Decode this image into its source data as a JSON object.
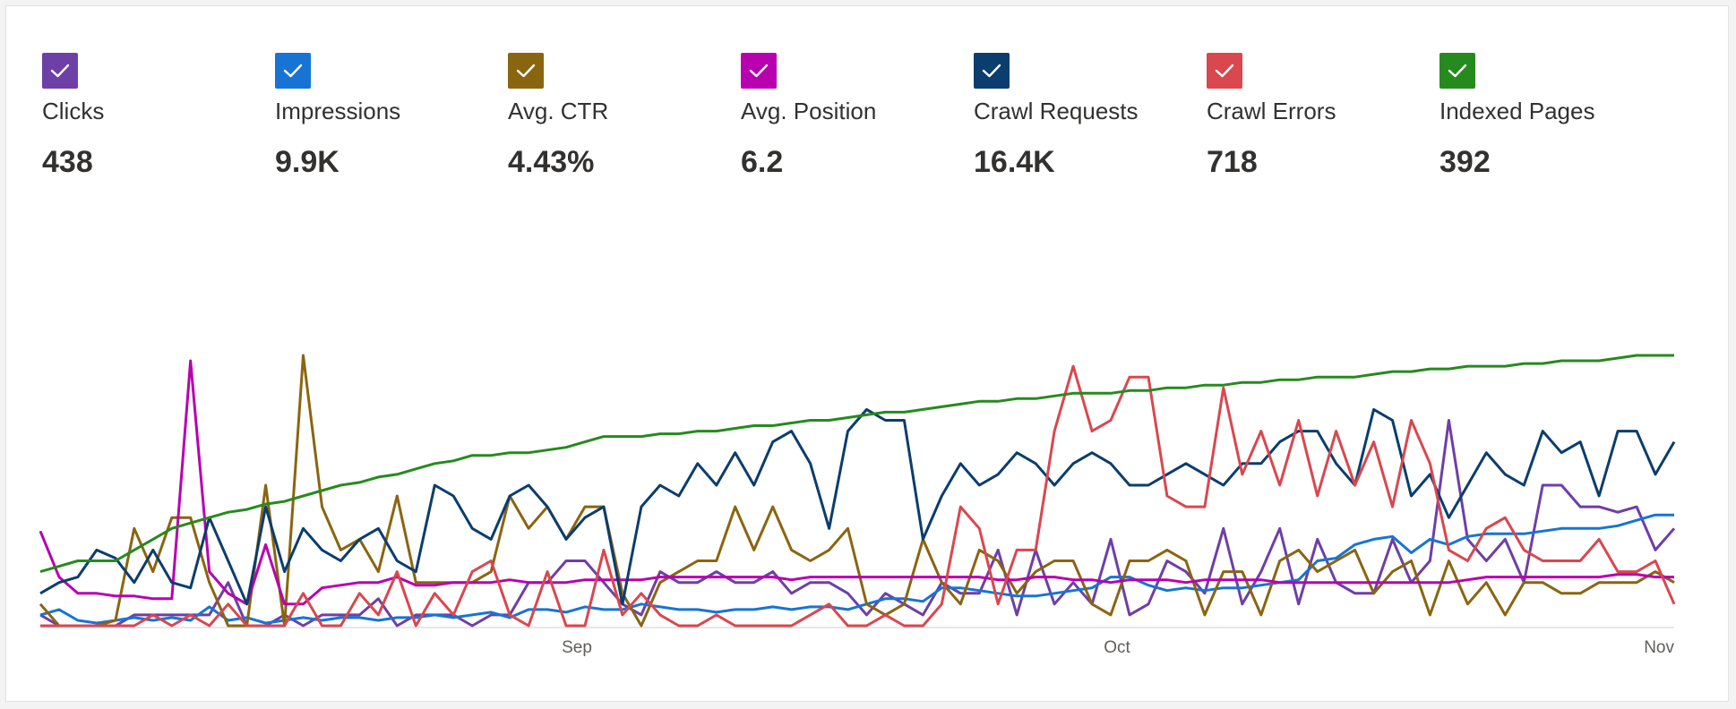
{
  "metrics": [
    {
      "label": "Clicks",
      "value": "438",
      "color": "#6d3fa7",
      "icon": "checkmark-icon"
    },
    {
      "label": "Impressions",
      "value": "9.9K",
      "color": "#1774d4",
      "icon": "checkmark-icon"
    },
    {
      "label": "Avg. CTR",
      "value": "4.43%",
      "color": "#8a6510",
      "icon": "checkmark-icon"
    },
    {
      "label": "Avg. Position",
      "value": "6.2",
      "color": "#b800b0",
      "icon": "checkmark-icon"
    },
    {
      "label": "Crawl Requests",
      "value": "16.4K",
      "color": "#0b3d6e",
      "icon": "checkmark-icon"
    },
    {
      "label": "Crawl Errors",
      "value": "718",
      "color": "#d9474f",
      "icon": "checkmark-icon"
    },
    {
      "label": "Indexed Pages",
      "value": "392",
      "color": "#268a1e",
      "icon": "checkmark-icon"
    }
  ],
  "chart_data": {
    "type": "line",
    "title": "",
    "xlabel": "",
    "ylabel": "",
    "x_ticks": [
      "Sep",
      "Oct",
      "Nov"
    ],
    "grid": false,
    "legend": "top",
    "series": [
      {
        "name": "Clicks",
        "color": "#6d3fa7",
        "values": [
          0.04,
          0.0,
          0.0,
          0.0,
          0.0,
          0.04,
          0.04,
          0.04,
          0.04,
          0.04,
          0.16,
          0.0,
          0.0,
          0.04,
          0.0,
          0.04,
          0.04,
          0.04,
          0.1,
          0.0,
          0.04,
          0.04,
          0.04,
          0.0,
          0.04,
          0.04,
          0.16,
          0.16,
          0.24,
          0.24,
          0.16,
          0.08,
          0.04,
          0.2,
          0.16,
          0.16,
          0.2,
          0.16,
          0.16,
          0.2,
          0.12,
          0.16,
          0.16,
          0.12,
          0.04,
          0.12,
          0.08,
          0.04,
          0.16,
          0.12,
          0.12,
          0.28,
          0.04,
          0.28,
          0.08,
          0.16,
          0.08,
          0.32,
          0.04,
          0.08,
          0.24,
          0.2,
          0.12,
          0.36,
          0.08,
          0.2,
          0.36,
          0.08,
          0.32,
          0.16,
          0.12,
          0.12,
          0.32,
          0.16,
          0.24,
          0.76,
          0.32,
          0.24,
          0.32,
          0.16,
          0.52,
          0.52,
          0.44,
          0.44,
          0.42,
          0.44,
          0.28,
          0.36
        ]
      },
      {
        "name": "Impressions",
        "color": "#1774d4",
        "values": [
          0.04,
          0.06,
          0.02,
          0.01,
          0.02,
          0.03,
          0.02,
          0.03,
          0.02,
          0.07,
          0.02,
          0.03,
          0.01,
          0.02,
          0.03,
          0.02,
          0.03,
          0.03,
          0.02,
          0.03,
          0.03,
          0.04,
          0.03,
          0.04,
          0.05,
          0.03,
          0.06,
          0.06,
          0.05,
          0.07,
          0.06,
          0.06,
          0.08,
          0.07,
          0.06,
          0.06,
          0.05,
          0.06,
          0.06,
          0.07,
          0.06,
          0.07,
          0.07,
          0.06,
          0.08,
          0.1,
          0.1,
          0.09,
          0.14,
          0.14,
          0.13,
          0.12,
          0.11,
          0.11,
          0.12,
          0.13,
          0.14,
          0.18,
          0.18,
          0.15,
          0.13,
          0.14,
          0.13,
          0.14,
          0.14,
          0.15,
          0.16,
          0.17,
          0.24,
          0.25,
          0.3,
          0.32,
          0.33,
          0.27,
          0.32,
          0.3,
          0.33,
          0.34,
          0.34,
          0.34,
          0.35,
          0.36,
          0.36,
          0.36,
          0.37,
          0.39,
          0.41,
          0.41
        ]
      },
      {
        "name": "Avg. CTR",
        "color": "#8a6510",
        "values": [
          0.08,
          0.0,
          0.0,
          0.0,
          0.02,
          0.36,
          0.2,
          0.4,
          0.4,
          0.16,
          0.0,
          0.0,
          0.52,
          0.0,
          1.0,
          0.44,
          0.28,
          0.32,
          0.2,
          0.48,
          0.16,
          0.16,
          0.16,
          0.16,
          0.2,
          0.48,
          0.36,
          0.44,
          0.32,
          0.44,
          0.44,
          0.12,
          0.0,
          0.16,
          0.2,
          0.24,
          0.24,
          0.44,
          0.28,
          0.44,
          0.28,
          0.24,
          0.28,
          0.36,
          0.08,
          0.04,
          0.08,
          0.32,
          0.16,
          0.08,
          0.28,
          0.24,
          0.12,
          0.2,
          0.24,
          0.24,
          0.08,
          0.04,
          0.24,
          0.24,
          0.28,
          0.24,
          0.04,
          0.2,
          0.2,
          0.04,
          0.24,
          0.28,
          0.2,
          0.24,
          0.28,
          0.12,
          0.2,
          0.24,
          0.04,
          0.24,
          0.08,
          0.16,
          0.04,
          0.16,
          0.16,
          0.12,
          0.12,
          0.16,
          0.16,
          0.16,
          0.2,
          0.16
        ]
      },
      {
        "name": "Avg. Position",
        "color": "#b800b0",
        "values": [
          0.35,
          0.18,
          0.12,
          0.12,
          0.11,
          0.11,
          0.1,
          0.1,
          0.98,
          0.2,
          0.12,
          0.08,
          0.3,
          0.08,
          0.08,
          0.14,
          0.15,
          0.16,
          0.16,
          0.18,
          0.15,
          0.15,
          0.16,
          0.16,
          0.16,
          0.17,
          0.16,
          0.16,
          0.16,
          0.17,
          0.17,
          0.17,
          0.17,
          0.18,
          0.18,
          0.18,
          0.18,
          0.18,
          0.18,
          0.18,
          0.17,
          0.18,
          0.18,
          0.18,
          0.18,
          0.18,
          0.18,
          0.18,
          0.18,
          0.18,
          0.18,
          0.17,
          0.17,
          0.18,
          0.18,
          0.17,
          0.17,
          0.16,
          0.17,
          0.17,
          0.17,
          0.16,
          0.17,
          0.17,
          0.17,
          0.17,
          0.16,
          0.16,
          0.16,
          0.16,
          0.16,
          0.16,
          0.16,
          0.16,
          0.16,
          0.16,
          0.17,
          0.18,
          0.18,
          0.18,
          0.18,
          0.18,
          0.18,
          0.18,
          0.19,
          0.19,
          0.18,
          0.18
        ]
      },
      {
        "name": "Crawl Requests",
        "color": "#0b3d6e",
        "values": [
          0.12,
          0.16,
          0.18,
          0.28,
          0.25,
          0.16,
          0.28,
          0.16,
          0.14,
          0.4,
          0.24,
          0.08,
          0.44,
          0.2,
          0.36,
          0.28,
          0.24,
          0.32,
          0.36,
          0.24,
          0.2,
          0.52,
          0.48,
          0.36,
          0.32,
          0.48,
          0.52,
          0.44,
          0.32,
          0.4,
          0.44,
          0.08,
          0.44,
          0.52,
          0.48,
          0.6,
          0.52,
          0.64,
          0.52,
          0.68,
          0.72,
          0.6,
          0.36,
          0.72,
          0.8,
          0.76,
          0.76,
          0.32,
          0.48,
          0.6,
          0.52,
          0.56,
          0.64,
          0.6,
          0.52,
          0.6,
          0.64,
          0.6,
          0.52,
          0.52,
          0.56,
          0.6,
          0.56,
          0.52,
          0.6,
          0.6,
          0.68,
          0.72,
          0.72,
          0.6,
          0.52,
          0.8,
          0.76,
          0.48,
          0.56,
          0.4,
          0.52,
          0.64,
          0.56,
          0.52,
          0.72,
          0.64,
          0.68,
          0.48,
          0.72,
          0.72,
          0.56,
          0.68
        ]
      },
      {
        "name": "Crawl Errors",
        "color": "#d9474f",
        "values": [
          0.0,
          0.0,
          0.0,
          0.0,
          0.0,
          0.0,
          0.04,
          0.0,
          0.04,
          0.0,
          0.08,
          0.0,
          0.0,
          0.0,
          0.12,
          0.0,
          0.0,
          0.12,
          0.04,
          0.2,
          0.0,
          0.12,
          0.04,
          0.2,
          0.24,
          0.04,
          0.0,
          0.2,
          0.0,
          0.0,
          0.28,
          0.04,
          0.12,
          0.04,
          0.0,
          0.0,
          0.04,
          0.0,
          0.0,
          0.0,
          0.0,
          0.04,
          0.08,
          0.0,
          0.0,
          0.04,
          0.0,
          0.0,
          0.08,
          0.44,
          0.36,
          0.08,
          0.28,
          0.28,
          0.72,
          0.96,
          0.72,
          0.76,
          0.92,
          0.92,
          0.48,
          0.44,
          0.44,
          0.88,
          0.56,
          0.72,
          0.52,
          0.76,
          0.48,
          0.72,
          0.52,
          0.68,
          0.44,
          0.76,
          0.6,
          0.28,
          0.24,
          0.36,
          0.4,
          0.28,
          0.24,
          0.24,
          0.24,
          0.32,
          0.2,
          0.2,
          0.24,
          0.08
        ]
      },
      {
        "name": "Indexed Pages",
        "color": "#268a1e",
        "values": [
          0.2,
          0.22,
          0.24,
          0.24,
          0.24,
          0.28,
          0.32,
          0.36,
          0.38,
          0.4,
          0.42,
          0.43,
          0.45,
          0.46,
          0.48,
          0.5,
          0.52,
          0.53,
          0.55,
          0.56,
          0.58,
          0.6,
          0.61,
          0.63,
          0.63,
          0.64,
          0.64,
          0.65,
          0.66,
          0.68,
          0.7,
          0.7,
          0.7,
          0.71,
          0.71,
          0.72,
          0.72,
          0.73,
          0.74,
          0.74,
          0.75,
          0.76,
          0.76,
          0.77,
          0.78,
          0.79,
          0.79,
          0.8,
          0.81,
          0.82,
          0.83,
          0.83,
          0.84,
          0.84,
          0.85,
          0.86,
          0.86,
          0.86,
          0.87,
          0.87,
          0.88,
          0.88,
          0.89,
          0.89,
          0.9,
          0.9,
          0.91,
          0.91,
          0.92,
          0.92,
          0.92,
          0.93,
          0.94,
          0.94,
          0.95,
          0.95,
          0.96,
          0.96,
          0.96,
          0.97,
          0.97,
          0.98,
          0.98,
          0.98,
          0.99,
          1.0,
          1.0,
          1.0
        ]
      }
    ]
  }
}
